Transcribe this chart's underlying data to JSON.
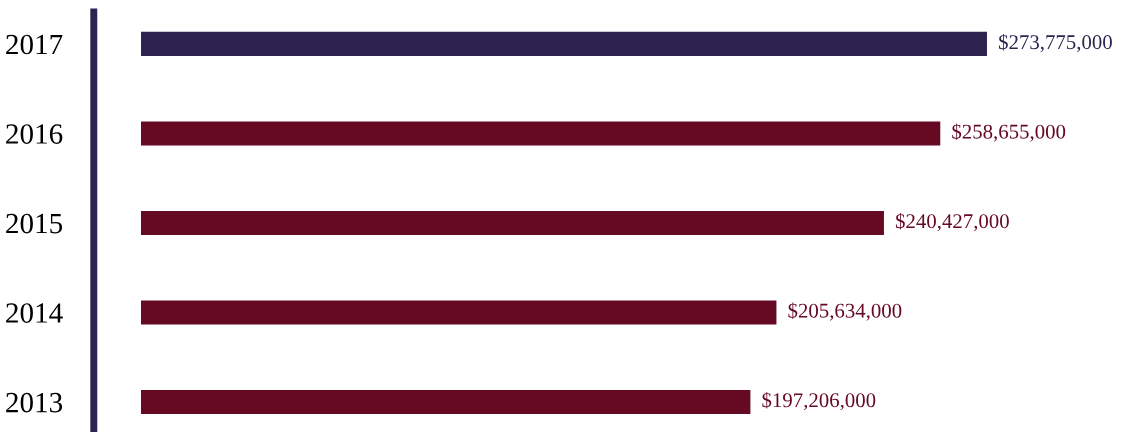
{
  "chart_data": {
    "type": "bar",
    "orientation": "horizontal",
    "tick_labels": "y",
    "categories": [
      "2017",
      "2016",
      "2015",
      "2014",
      "2013"
    ],
    "values": [
      273775000,
      258655000,
      240427000,
      205634000,
      197206000
    ],
    "colors": [
      "#2e2350",
      "#660a24",
      "#660a24",
      "#660a24",
      "#660a24"
    ],
    "value_labels": [
      "$273,775,000",
      "$258,655,000",
      "$240,427,000",
      "$205,634,000",
      "$197,206,000"
    ],
    "grid": false,
    "legend": false
  }
}
